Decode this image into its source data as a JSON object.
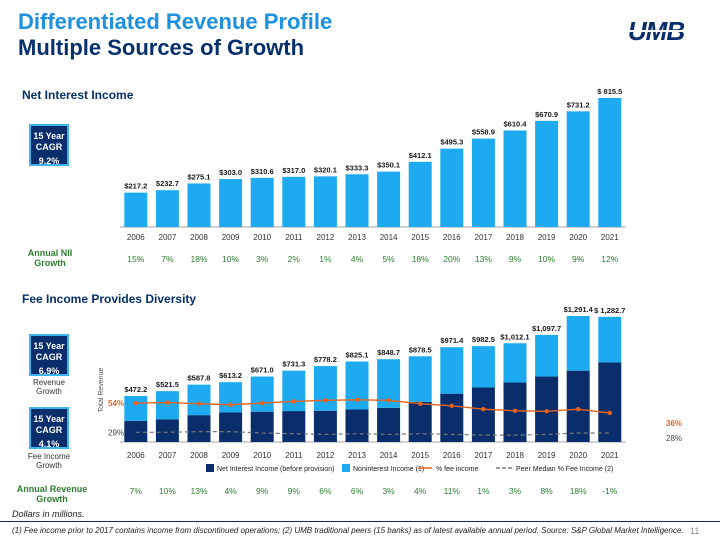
{
  "header": {
    "title_line1": "Differentiated Revenue Profile",
    "title_line2": "Multiple Sources of Growth",
    "logo_text": "UMB"
  },
  "section1": {
    "title": "Net Interest Income",
    "badge_line1": "15 Year",
    "badge_line2": "CAGR",
    "badge_value": "9.2%",
    "growth_label_line1": "Annual NII",
    "growth_label_line2": "Growth"
  },
  "section2": {
    "title": "Fee Income Provides Diversity",
    "badge1_line1": "15 Year",
    "badge1_line2": "CAGR",
    "badge1_value": "6.9%",
    "badge1_caption_line1": "Revenue",
    "badge1_caption_line2": "Growth",
    "badge2_line1": "15 Year",
    "badge2_line2": "CAGR",
    "badge2_value": "4.1%",
    "badge2_caption_line1": "Fee Income",
    "badge2_caption_line2": "Growth",
    "growth_label_line1": "Annual Revenue",
    "growth_label_line2": "Growth"
  },
  "colors": {
    "nii_bar": "#1eaaf1",
    "nii_dark": "#0a2e6b",
    "fee_bar": "#1eaaf1",
    "fee_line": "#e8631a",
    "peer_line": "#777777",
    "growth_text": "#2e7d32",
    "title_blue": "#1e90e0",
    "title_navy": "#06306b"
  },
  "chart_data": [
    {
      "type": "bar",
      "title": "Net Interest Income",
      "categories": [
        "2006",
        "2007",
        "2008",
        "2009",
        "2010",
        "2011",
        "2012",
        "2013",
        "2014",
        "2015",
        "2016",
        "2017",
        "2018",
        "2019",
        "2020",
        "2021"
      ],
      "values": [
        217.2,
        232.7,
        275.1,
        303.0,
        310.6,
        317.0,
        320.1,
        333.3,
        350.1,
        412.1,
        495.3,
        558.9,
        610.4,
        670.9,
        731.2,
        815.5
      ],
      "value_labels": [
        "$217.2",
        "$232.7",
        "$275.1",
        "$303.0",
        "$310.6",
        "$317.0",
        "$320.1",
        "$333.3",
        "$350.1",
        "$412.1",
        "$495.3",
        "$558.9",
        "$610.4",
        "$670.9",
        "$731.2",
        "$ 815.5"
      ],
      "annual_growth": [
        "15%",
        "7%",
        "18%",
        "10%",
        "3%",
        "2%",
        "1%",
        "4%",
        "5%",
        "18%",
        "20%",
        "13%",
        "9%",
        "10%",
        "9%",
        "12%"
      ],
      "ylim": [
        0,
        815.5
      ]
    },
    {
      "type": "bar",
      "stacked": true,
      "title": "Fee Income Provides Diversity",
      "ylabel": "Total Revenue",
      "categories": [
        "2006",
        "2007",
        "2008",
        "2009",
        "2010",
        "2011",
        "2012",
        "2013",
        "2014",
        "2015",
        "2016",
        "2017",
        "2018",
        "2019",
        "2020",
        "2021"
      ],
      "series": [
        {
          "name": "Net Interest Income (before provision)",
          "values": [
            217.2,
            232.7,
            275.1,
            303.0,
            310.6,
            317.0,
            320.1,
            333.3,
            350.1,
            412.1,
            495.3,
            558.9,
            610.4,
            670.9,
            731.2,
            815.5
          ]
        },
        {
          "name": "Noninterest Income (1)",
          "values": [
            255.0,
            288.8,
            312.7,
            310.2,
            360.4,
            414.3,
            458.1,
            491.8,
            498.6,
            466.4,
            476.1,
            423.6,
            401.7,
            426.8,
            560.2,
            467.2
          ]
        }
      ],
      "totals": [
        "$472.2",
        "$521.5",
        "$587.8",
        "$613.2",
        "$671.0",
        "$731.3",
        "$778.2",
        "$825.1",
        "$848.7",
        "$878.5",
        "$971.4",
        "$982.5",
        "$1,012.1",
        "$1,097.7",
        "$1,291.4",
        "$ 1,282.7"
      ],
      "lines": [
        {
          "name": "% fee income",
          "values": [
            54,
            55,
            53,
            51,
            54,
            57,
            59,
            60,
            59,
            53,
            49,
            43,
            40,
            39,
            43,
            36
          ]
        },
        {
          "name": "Peer Median % Fee Income (2)",
          "values": [
            29,
            29,
            30,
            30,
            28,
            27,
            26,
            27,
            26,
            27,
            26,
            25,
            25,
            26,
            28,
            28
          ]
        }
      ],
      "line_labels": {
        "fee_first": "54%",
        "fee_last": "36%",
        "peer_first": "29%",
        "peer_last": "28%"
      },
      "legend": [
        "Net Interest Income (before provision)",
        "Noninterest Income (1)",
        "% fee income",
        "Peer Median % Fee Income (2)"
      ],
      "legend_position": "bottom",
      "annual_growth": [
        "7%",
        "10%",
        "13%",
        "4%",
        "9%",
        "9%",
        "6%",
        "6%",
        "3%",
        "4%",
        "11%",
        "1%",
        "3%",
        "8%",
        "18%",
        "-1%"
      ],
      "ylim": [
        0,
        1291.4
      ]
    }
  ],
  "footer": {
    "dollars": "Dollars in millions.",
    "footnote": "(1) Fee income prior to 2017 contains income from discontinued operations; (2) UMB traditional peers (15 banks) as of latest available annual period. Source: S&P Global Market Intelligence.",
    "page": "11"
  }
}
